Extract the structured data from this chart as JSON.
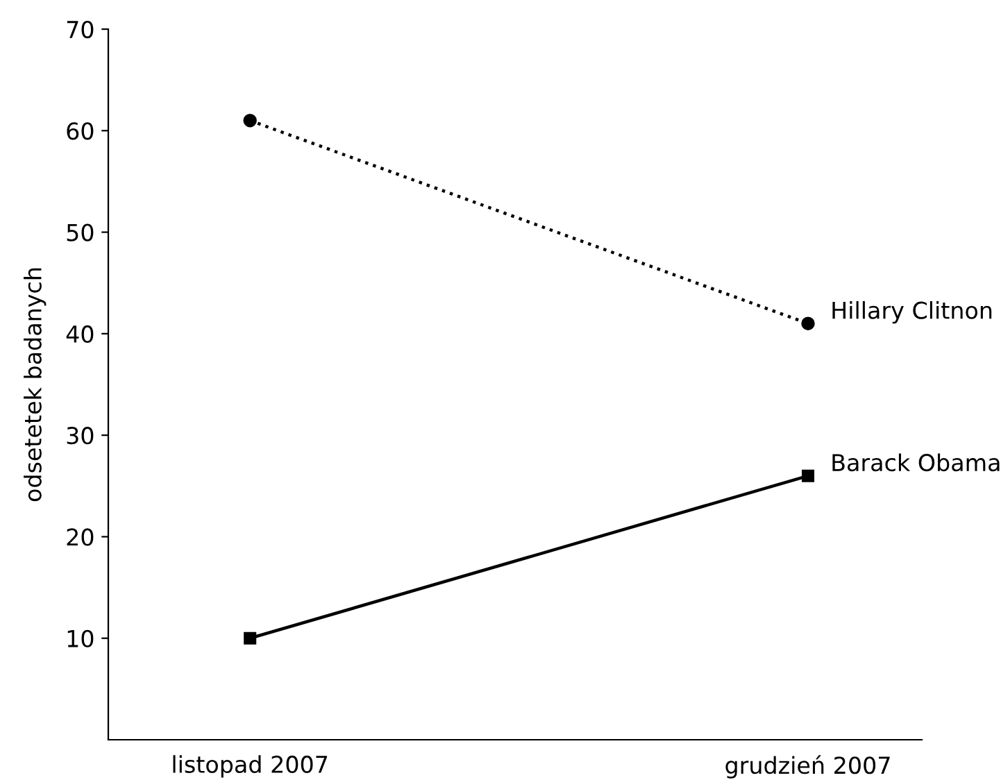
{
  "chart_data": {
    "type": "line",
    "ylabel": "odsetetek badanych",
    "categories": [
      "listopad 2007",
      "grudzień 2007"
    ],
    "ylim": [
      0,
      70
    ],
    "yticks": [
      10,
      20,
      30,
      40,
      50,
      60,
      70
    ],
    "grid": false,
    "legend": false,
    "series": [
      {
        "name": "Hillary Clitnon",
        "color": "#000000",
        "values": [
          61,
          41
        ],
        "marker": "circle",
        "line_style": "dotted"
      },
      {
        "name": "Barack Obama",
        "color": "#000000",
        "values": [
          10,
          26
        ],
        "marker": "square",
        "line_style": "solid"
      }
    ]
  }
}
